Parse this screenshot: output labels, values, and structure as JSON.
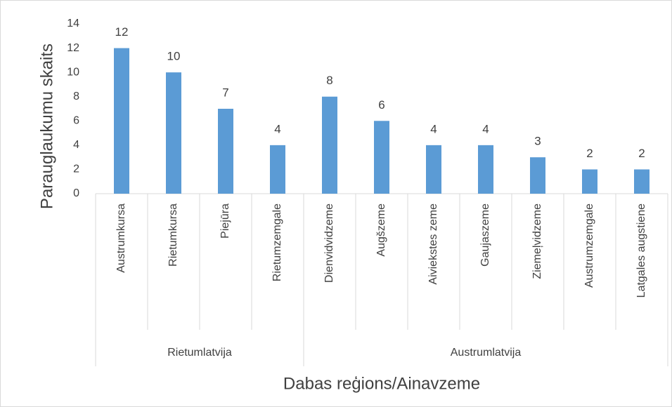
{
  "chart_data": {
    "type": "bar",
    "ylabel": "Parauglaukumu skaits",
    "xlabel": "Dabas reģions/Ainavzeme",
    "color": "#5b9bd5",
    "ylim": [
      0,
      14
    ],
    "yticks": [
      0,
      2,
      4,
      6,
      8,
      10,
      12,
      14
    ],
    "groups": [
      {
        "name": "Rietumlatvija",
        "categories": [
          "Austrumkursa",
          "Rietumkursa",
          "Piejūra",
          "Rietumzemgale"
        ],
        "values": [
          12,
          10,
          7,
          4
        ]
      },
      {
        "name": "Austrumlatvija",
        "categories": [
          "Dienvidvidzeme",
          "Augšzeme",
          "Aiviekstes zeme",
          "Gaujaszeme",
          "Ziemeļvidzeme",
          "Austrumzemgale",
          "Latgales augstiene"
        ],
        "values": [
          8,
          6,
          4,
          4,
          3,
          2,
          2
        ]
      }
    ]
  }
}
